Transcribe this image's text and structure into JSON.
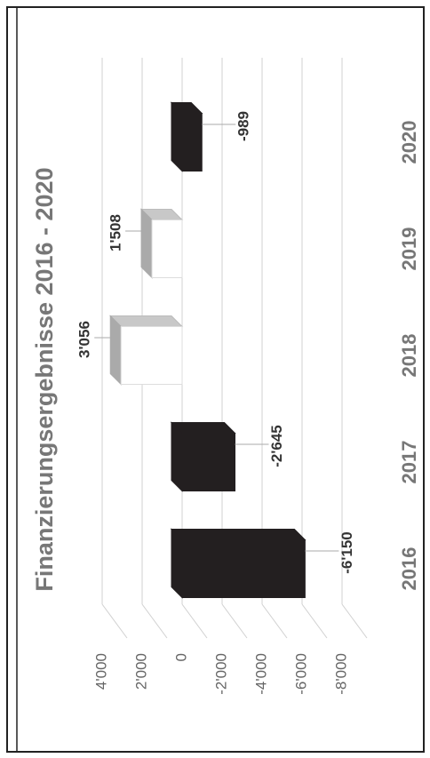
{
  "chart_data": {
    "type": "bar",
    "title": "Finanzierungsergebnisse 2016 - 2020",
    "categories": [
      "2016",
      "2017",
      "2018",
      "2019",
      "2020"
    ],
    "values": [
      -6150,
      -2645,
      3056,
      1508,
      -989
    ],
    "value_labels": [
      "-6'150",
      "-2'645",
      "3'056",
      "1'508",
      "-989"
    ],
    "colors": [
      "#231f20",
      "#231f20",
      "#ffffff",
      "#ffffff",
      "#231f20"
    ],
    "ylim": [
      -8000,
      4000
    ],
    "yticks": [
      {
        "value": -8000,
        "label": "-8'000"
      },
      {
        "value": -6000,
        "label": "-6'000"
      },
      {
        "value": -4000,
        "label": "-4'000"
      },
      {
        "value": -2000,
        "label": "-2'000"
      },
      0,
      {
        "value": 2000,
        "label": "2'000"
      },
      {
        "value": 4000,
        "label": "4'000"
      }
    ],
    "grid": true
  }
}
